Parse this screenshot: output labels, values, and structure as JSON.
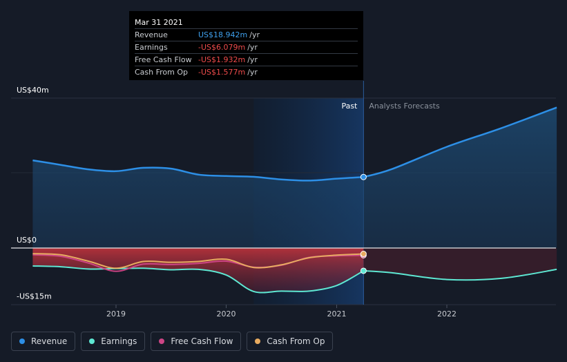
{
  "chart_data": {
    "type": "area",
    "y_axis": {
      "ticks": [
        "US$40m",
        "US$0",
        "-US$15m"
      ],
      "ylim": [
        -15,
        40
      ],
      "unit": "US$m"
    },
    "x_axis": {
      "ticks": [
        "2019",
        "2020",
        "2021",
        "2022"
      ]
    },
    "regions": {
      "past_label": "Past",
      "forecast_label": "Analysts Forecasts",
      "highlight_from": "2020-04",
      "divider_at": "2021-03-31"
    },
    "series": [
      {
        "name": "Revenue",
        "color": "#2d8fe6",
        "points": [
          [
            "2018-03-31",
            23.4
          ],
          [
            "2018-07-01",
            22.2
          ],
          [
            "2018-10-01",
            21.0
          ],
          [
            "2019-01-01",
            20.5
          ],
          [
            "2019-04-01",
            21.4
          ],
          [
            "2019-07-01",
            21.2
          ],
          [
            "2019-10-01",
            19.6
          ],
          [
            "2020-01-01",
            19.2
          ],
          [
            "2020-04-01",
            19.0
          ],
          [
            "2020-07-01",
            18.3
          ],
          [
            "2020-10-01",
            18.0
          ],
          [
            "2021-01-01",
            18.5
          ],
          [
            "2021-03-31",
            18.942
          ]
        ],
        "forecast": [
          [
            "2021-03-31",
            18.942
          ],
          [
            "2021-07-01",
            21.0
          ],
          [
            "2022-01-01",
            27.0
          ],
          [
            "2022-07-01",
            32.0
          ],
          [
            "2022-12-31",
            37.5
          ]
        ]
      },
      {
        "name": "Earnings",
        "color": "#5ee8d3",
        "points": [
          [
            "2018-03-31",
            -4.8
          ],
          [
            "2018-07-01",
            -5.0
          ],
          [
            "2018-10-01",
            -5.6
          ],
          [
            "2019-01-01",
            -5.5
          ],
          [
            "2019-04-01",
            -5.4
          ],
          [
            "2019-07-01",
            -5.8
          ],
          [
            "2019-10-01",
            -5.7
          ],
          [
            "2020-01-01",
            -7.2
          ],
          [
            "2020-04-01",
            -11.6
          ],
          [
            "2020-07-01",
            -11.5
          ],
          [
            "2020-10-01",
            -11.5
          ],
          [
            "2021-01-01",
            -10.0
          ],
          [
            "2021-03-31",
            -6.079
          ]
        ],
        "forecast": [
          [
            "2021-03-31",
            -6.079
          ],
          [
            "2021-07-01",
            -6.6
          ],
          [
            "2022-01-01",
            -8.4
          ],
          [
            "2022-07-01",
            -8.1
          ],
          [
            "2022-12-31",
            -5.7
          ]
        ]
      },
      {
        "name": "Free Cash Flow",
        "color": "#cc4585",
        "points": [
          [
            "2018-03-31",
            -1.8
          ],
          [
            "2018-07-01",
            -2.2
          ],
          [
            "2018-10-01",
            -4.0
          ],
          [
            "2019-01-01",
            -6.2
          ],
          [
            "2019-04-01",
            -4.3
          ],
          [
            "2019-07-01",
            -4.4
          ],
          [
            "2019-10-01",
            -4.1
          ],
          [
            "2020-01-01",
            -3.5
          ],
          [
            "2020-04-01",
            -5.1
          ],
          [
            "2020-07-01",
            -4.6
          ],
          [
            "2020-10-01",
            -2.5
          ],
          [
            "2021-01-01",
            -2.1
          ],
          [
            "2021-03-31",
            -1.932
          ]
        ]
      },
      {
        "name": "Cash From Op",
        "color": "#e8ab60",
        "points": [
          [
            "2018-03-31",
            -1.5
          ],
          [
            "2018-07-01",
            -1.8
          ],
          [
            "2018-10-01",
            -3.5
          ],
          [
            "2019-01-01",
            -5.4
          ],
          [
            "2019-04-01",
            -3.6
          ],
          [
            "2019-07-01",
            -3.8
          ],
          [
            "2019-10-01",
            -3.6
          ],
          [
            "2020-01-01",
            -3.0
          ],
          [
            "2020-04-01",
            -5.2
          ],
          [
            "2020-07-01",
            -4.5
          ],
          [
            "2020-10-01",
            -2.6
          ],
          [
            "2021-01-01",
            -1.9
          ],
          [
            "2021-03-31",
            -1.577
          ]
        ]
      }
    ]
  },
  "tooltip": {
    "date": "Mar 31 2021",
    "rows": [
      {
        "label": "Revenue",
        "value": "US$18.942m",
        "unit": "/yr"
      },
      {
        "label": "Earnings",
        "value": "-US$6.079m",
        "unit": "/yr"
      },
      {
        "label": "Free Cash Flow",
        "value": "-US$1.932m",
        "unit": "/yr"
      },
      {
        "label": "Cash From Op",
        "value": "-US$1.577m",
        "unit": "/yr"
      }
    ]
  },
  "legend": [
    {
      "label": "Revenue",
      "color": "#2d8fe6"
    },
    {
      "label": "Earnings",
      "color": "#5ee8d3"
    },
    {
      "label": "Free Cash Flow",
      "color": "#cc4585"
    },
    {
      "label": "Cash From Op",
      "color": "#e8ab60"
    }
  ]
}
